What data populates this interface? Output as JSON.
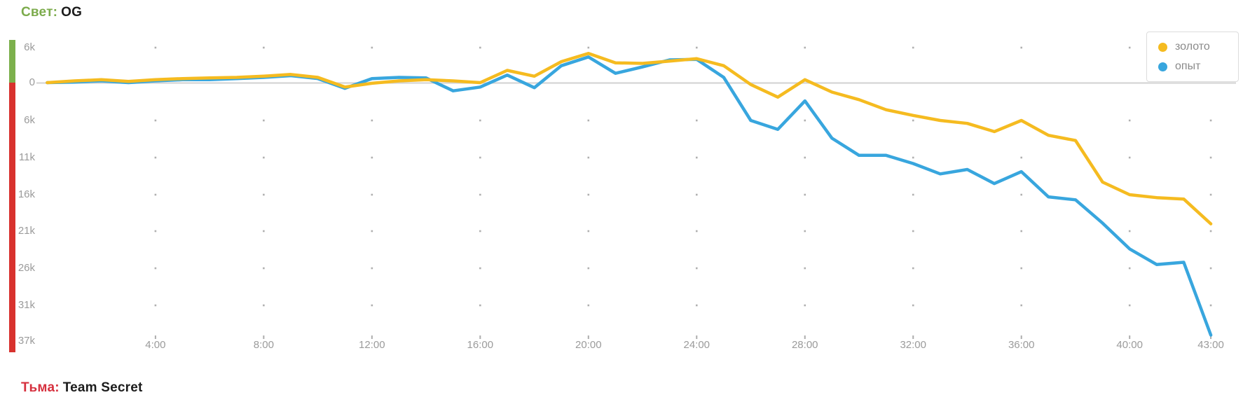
{
  "header": {
    "side_label": "Свет:",
    "team_name": "OG"
  },
  "footer": {
    "side_label": "Тьма:",
    "team_name": "Team Secret"
  },
  "legend": {
    "items": [
      {
        "label": "золото",
        "color": "#F5BB20"
      },
      {
        "label": "опыт",
        "color": "#38A6DE"
      }
    ]
  },
  "colors": {
    "radiant_green": "#7CB04C",
    "dire_red": "#D8322E",
    "gold_line": "#F5BB20",
    "xp_line": "#38A6DE",
    "axis_text": "#9B9B9B",
    "zero_line": "#D4D4D4",
    "grid_dot": "#B0B0B0"
  },
  "chart_data": {
    "type": "line",
    "title": "",
    "xlabel": "",
    "ylabel": "",
    "x_unit": "minutes",
    "x": [
      0,
      1,
      2,
      3,
      4,
      5,
      6,
      7,
      8,
      9,
      10,
      11,
      12,
      13,
      14,
      15,
      16,
      17,
      18,
      19,
      20,
      21,
      22,
      23,
      24,
      25,
      26,
      27,
      28,
      29,
      30,
      31,
      32,
      33,
      34,
      35,
      36,
      37,
      38,
      39,
      40,
      41,
      42,
      43
    ],
    "x_tick_minutes": [
      4,
      8,
      12,
      16,
      20,
      24,
      28,
      32,
      36,
      40,
      43
    ],
    "x_tick_labels": [
      "4:00",
      "8:00",
      "12:00",
      "16:00",
      "20:00",
      "24:00",
      "28:00",
      "32:00",
      "36:00",
      "40:00",
      "43:00"
    ],
    "y_tick_values": [
      6000,
      0,
      -6000,
      -11000,
      -16000,
      -21000,
      -26000,
      -31000,
      -37000
    ],
    "y_tick_labels": [
      "6k",
      "0",
      "6k",
      "11k",
      "16k",
      "21k",
      "26k",
      "31k",
      "37k"
    ],
    "ylim": [
      -37000,
      6000
    ],
    "grid": "dotted intersections",
    "legend_position": "top-right",
    "series": [
      {
        "name": "золото",
        "color": "#F5BB20",
        "values": [
          0,
          300,
          500,
          200,
          500,
          700,
          800,
          900,
          1100,
          1400,
          900,
          -700,
          -100,
          300,
          500,
          300,
          0,
          2100,
          1100,
          3600,
          5000,
          3400,
          3300,
          3700,
          4100,
          2900,
          -300,
          -2300,
          500,
          -1500,
          -2700,
          -4300,
          -5200,
          -6000,
          -6400,
          -7500,
          -6000,
          -8000,
          -8700,
          -14300,
          -16000,
          -16400,
          -16600,
          -20000
        ]
      },
      {
        "name": "опыт",
        "color": "#38A6DE",
        "values": [
          0,
          100,
          300,
          0,
          300,
          500,
          500,
          700,
          900,
          1200,
          700,
          -900,
          700,
          900,
          800,
          -1300,
          -700,
          1300,
          -800,
          2900,
          4400,
          1600,
          2700,
          3900,
          4000,
          900,
          -6000,
          -7200,
          -2900,
          -8400,
          -10700,
          -10700,
          -11800,
          -13200,
          -12600,
          -14500,
          -12900,
          -16300,
          -16700,
          -19900,
          -23400,
          -25500,
          -25200,
          -36000
        ]
      }
    ]
  }
}
